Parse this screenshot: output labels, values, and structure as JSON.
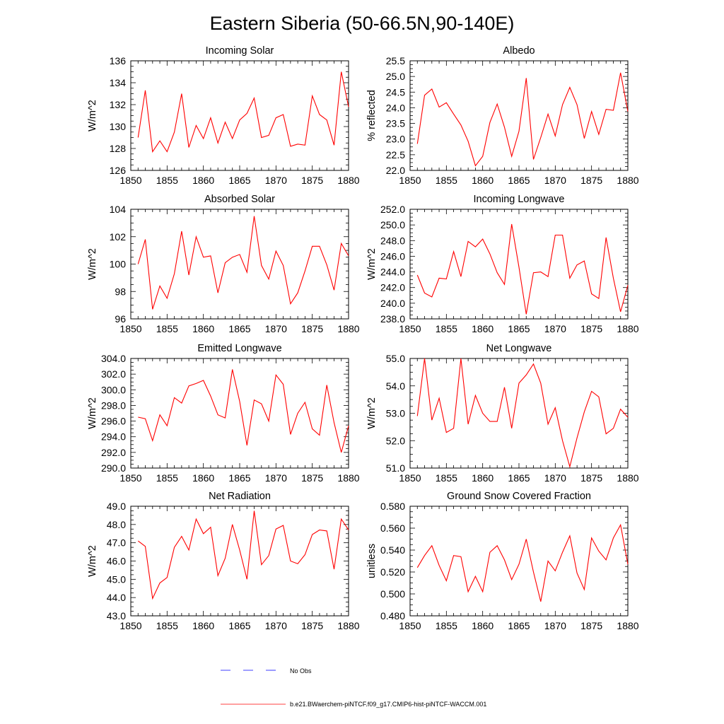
{
  "page": {
    "title": "Eastern Siberia (50-66.5N,90-140E)"
  },
  "legend": {
    "obs_label": "No Obs",
    "model_label": "b.e21.BWaerchem-piNTCF.f09_g17.CMIP6-hist-piNTCF-WACCM.001",
    "obs_color": "#0000ff",
    "model_color": "#ff0000"
  },
  "chart_data": [
    {
      "type": "line",
      "title": "Incoming Solar",
      "xlabel": "",
      "ylabel": "W/m^2",
      "xlim": [
        1850,
        1880
      ],
      "ylim": [
        126,
        136
      ],
      "yticks": [
        "126",
        "128",
        "130",
        "132",
        "134",
        "136"
      ],
      "xticks": [
        "1850",
        "1855",
        "1860",
        "1865",
        "1870",
        "1875",
        "1880"
      ],
      "series": [
        {
          "color": "#ff0000",
          "x": [
            1851,
            1852,
            1853,
            1854,
            1855,
            1856,
            1857,
            1858,
            1859,
            1860,
            1861,
            1862,
            1863,
            1864,
            1865,
            1866,
            1867,
            1868,
            1869,
            1870,
            1871,
            1872,
            1873,
            1874,
            1875,
            1876,
            1877,
            1878,
            1879,
            1880
          ],
          "values": [
            129.0,
            133.3,
            127.7,
            128.7,
            127.7,
            129.5,
            133.0,
            128.1,
            130.1,
            128.9,
            130.8,
            128.5,
            130.4,
            128.9,
            130.6,
            131.2,
            132.6,
            129.0,
            129.2,
            130.8,
            131.1,
            128.2,
            128.4,
            128.3,
            132.8,
            131.1,
            130.6,
            128.3,
            135.0,
            131.8
          ]
        }
      ]
    },
    {
      "type": "line",
      "title": "Albedo",
      "xlabel": "",
      "ylabel": "% reflected",
      "xlim": [
        1850,
        1880
      ],
      "ylim": [
        22.0,
        25.5
      ],
      "yticks": [
        "22.0",
        "22.5",
        "23.0",
        "23.5",
        "24.0",
        "24.5",
        "25.0",
        "25.5"
      ],
      "xticks": [
        "1850",
        "1855",
        "1860",
        "1865",
        "1870",
        "1875",
        "1880"
      ],
      "series": [
        {
          "color": "#ff0000",
          "x": [
            1851,
            1852,
            1853,
            1854,
            1855,
            1856,
            1857,
            1858,
            1859,
            1860,
            1861,
            1862,
            1863,
            1864,
            1865,
            1866,
            1867,
            1868,
            1869,
            1870,
            1871,
            1872,
            1873,
            1874,
            1875,
            1876,
            1877,
            1878,
            1879,
            1880
          ],
          "values": [
            22.85,
            24.4,
            24.6,
            24.02,
            24.16,
            23.8,
            23.45,
            22.93,
            22.15,
            22.45,
            23.53,
            24.12,
            23.38,
            22.45,
            23.25,
            24.95,
            22.35,
            23.05,
            23.8,
            23.1,
            24.1,
            24.65,
            24.1,
            23.02,
            23.88,
            23.15,
            23.95,
            23.92,
            25.12,
            23.88
          ]
        }
      ]
    },
    {
      "type": "line",
      "title": "Absorbed Solar",
      "xlabel": "",
      "ylabel": "W/m^2",
      "xlim": [
        1850,
        1880
      ],
      "ylim": [
        96,
        104
      ],
      "yticks": [
        "96",
        "98",
        "100",
        "102",
        "104"
      ],
      "xticks": [
        "1850",
        "1855",
        "1860",
        "1865",
        "1870",
        "1875",
        "1880"
      ],
      "series": [
        {
          "color": "#ff0000",
          "x": [
            1851,
            1852,
            1853,
            1854,
            1855,
            1856,
            1857,
            1858,
            1859,
            1860,
            1861,
            1862,
            1863,
            1864,
            1865,
            1866,
            1867,
            1868,
            1869,
            1870,
            1871,
            1872,
            1873,
            1874,
            1875,
            1876,
            1877,
            1878,
            1879,
            1880
          ],
          "values": [
            100.0,
            101.8,
            96.7,
            98.4,
            97.5,
            99.3,
            102.4,
            99.2,
            102.0,
            100.5,
            100.6,
            97.9,
            100.1,
            100.5,
            100.7,
            99.4,
            103.5,
            99.9,
            98.9,
            100.95,
            99.9,
            97.1,
            97.9,
            99.5,
            101.3,
            101.3,
            99.95,
            98.1,
            101.5,
            100.6
          ]
        }
      ]
    },
    {
      "type": "line",
      "title": "Incoming Longwave",
      "xlabel": "",
      "ylabel": "W/m^2",
      "xlim": [
        1850,
        1880
      ],
      "ylim": [
        238,
        252
      ],
      "yticks": [
        "238.0",
        "240.0",
        "242.0",
        "244.0",
        "246.0",
        "248.0",
        "250.0",
        "252.0"
      ],
      "xticks": [
        "1850",
        "1855",
        "1860",
        "1865",
        "1870",
        "1875",
        "1880"
      ],
      "series": [
        {
          "color": "#ff0000",
          "x": [
            1851,
            1852,
            1853,
            1854,
            1855,
            1856,
            1857,
            1858,
            1859,
            1860,
            1861,
            1862,
            1863,
            1864,
            1865,
            1866,
            1867,
            1868,
            1869,
            1870,
            1871,
            1872,
            1873,
            1874,
            1875,
            1876,
            1877,
            1878,
            1879,
            1880
          ],
          "values": [
            243.6,
            241.3,
            240.8,
            243.2,
            243.1,
            246.6,
            243.4,
            247.9,
            247.2,
            248.2,
            246.3,
            243.9,
            242.4,
            250.1,
            244.6,
            238.6,
            243.9,
            244.0,
            243.4,
            248.7,
            248.7,
            243.2,
            244.9,
            245.4,
            241.2,
            240.6,
            248.4,
            243.2,
            238.9,
            242.3
          ]
        }
      ]
    },
    {
      "type": "line",
      "title": "Emitted Longwave",
      "xlabel": "",
      "ylabel": "W/m^2",
      "xlim": [
        1850,
        1880
      ],
      "ylim": [
        290,
        304
      ],
      "yticks": [
        "290.0",
        "292.0",
        "294.0",
        "296.0",
        "298.0",
        "300.0",
        "302.0",
        "304.0"
      ],
      "xticks": [
        "1850",
        "1855",
        "1860",
        "1865",
        "1870",
        "1875",
        "1880"
      ],
      "series": [
        {
          "color": "#ff0000",
          "x": [
            1851,
            1852,
            1853,
            1854,
            1855,
            1856,
            1857,
            1858,
            1859,
            1860,
            1861,
            1862,
            1863,
            1864,
            1865,
            1866,
            1867,
            1868,
            1869,
            1870,
            1871,
            1872,
            1873,
            1874,
            1875,
            1876,
            1877,
            1878,
            1879,
            1880
          ],
          "values": [
            296.5,
            296.3,
            293.5,
            296.8,
            295.4,
            299.0,
            298.3,
            300.5,
            300.8,
            301.2,
            299.2,
            296.8,
            296.4,
            302.6,
            298.5,
            292.9,
            298.7,
            298.2,
            296.0,
            301.9,
            300.7,
            294.3,
            297.0,
            298.4,
            295.0,
            294.2,
            300.6,
            295.8,
            292.0,
            295.4
          ]
        }
      ]
    },
    {
      "type": "line",
      "title": "Net Longwave",
      "xlabel": "",
      "ylabel": "W/m^2",
      "xlim": [
        1850,
        1880
      ],
      "ylim": [
        51.0,
        55.0
      ],
      "yticks": [
        "51.0",
        "52.0",
        "53.0",
        "54.0",
        "55.0"
      ],
      "xticks": [
        "1850",
        "1855",
        "1860",
        "1865",
        "1870",
        "1875",
        "1880"
      ],
      "series": [
        {
          "color": "#ff0000",
          "x": [
            1851,
            1852,
            1853,
            1854,
            1855,
            1856,
            1857,
            1858,
            1859,
            1860,
            1861,
            1862,
            1863,
            1864,
            1865,
            1866,
            1867,
            1868,
            1869,
            1870,
            1871,
            1872,
            1873,
            1874,
            1875,
            1876,
            1877,
            1878,
            1879,
            1880
          ],
          "values": [
            52.9,
            55.0,
            52.75,
            53.55,
            52.3,
            52.45,
            55.0,
            52.6,
            53.65,
            53.0,
            52.7,
            52.7,
            53.95,
            52.45,
            54.1,
            54.4,
            54.8,
            54.1,
            52.6,
            53.2,
            52.0,
            51.05,
            52.1,
            53.05,
            53.8,
            53.6,
            52.25,
            52.45,
            53.15,
            52.85
          ]
        }
      ]
    },
    {
      "type": "line",
      "title": "Net Radiation",
      "xlabel": "",
      "ylabel": "W/m^2",
      "xlim": [
        1850,
        1880
      ],
      "ylim": [
        43.0,
        49.0
      ],
      "yticks": [
        "43.0",
        "44.0",
        "45.0",
        "46.0",
        "47.0",
        "48.0",
        "49.0"
      ],
      "xticks": [
        "1850",
        "1855",
        "1860",
        "1865",
        "1870",
        "1875",
        "1880"
      ],
      "series": [
        {
          "color": "#ff0000",
          "x": [
            1851,
            1852,
            1853,
            1854,
            1855,
            1856,
            1857,
            1858,
            1859,
            1860,
            1861,
            1862,
            1863,
            1864,
            1865,
            1866,
            1867,
            1868,
            1869,
            1870,
            1871,
            1872,
            1873,
            1874,
            1875,
            1876,
            1877,
            1878,
            1879,
            1880
          ],
          "values": [
            47.1,
            46.8,
            43.95,
            44.8,
            45.1,
            46.75,
            47.35,
            46.6,
            48.3,
            47.5,
            47.85,
            45.2,
            46.15,
            48.0,
            46.6,
            45.0,
            48.75,
            45.8,
            46.3,
            47.75,
            47.95,
            46.0,
            45.85,
            46.35,
            47.45,
            47.7,
            47.65,
            45.55,
            48.3,
            47.7
          ]
        }
      ]
    },
    {
      "type": "line",
      "title": "Ground Snow Covered Fraction",
      "xlabel": "",
      "ylabel": "unitless",
      "xlim": [
        1850,
        1880
      ],
      "ylim": [
        0.48,
        0.58
      ],
      "yticks": [
        "0.480",
        "0.500",
        "0.520",
        "0.540",
        "0.560",
        "0.580"
      ],
      "xticks": [
        "1850",
        "1855",
        "1860",
        "1865",
        "1870",
        "1875",
        "1880"
      ],
      "series": [
        {
          "color": "#ff0000",
          "x": [
            1851,
            1852,
            1853,
            1854,
            1855,
            1856,
            1857,
            1858,
            1859,
            1860,
            1861,
            1862,
            1863,
            1864,
            1865,
            1866,
            1867,
            1868,
            1869,
            1870,
            1871,
            1872,
            1873,
            1874,
            1875,
            1876,
            1877,
            1878,
            1879,
            1880
          ],
          "values": [
            0.524,
            0.535,
            0.544,
            0.526,
            0.512,
            0.535,
            0.534,
            0.502,
            0.516,
            0.502,
            0.538,
            0.544,
            0.531,
            0.513,
            0.527,
            0.55,
            0.52,
            0.493,
            0.53,
            0.521,
            0.538,
            0.553,
            0.519,
            0.504,
            0.551,
            0.539,
            0.531,
            0.551,
            0.563,
            0.527
          ]
        }
      ]
    }
  ]
}
